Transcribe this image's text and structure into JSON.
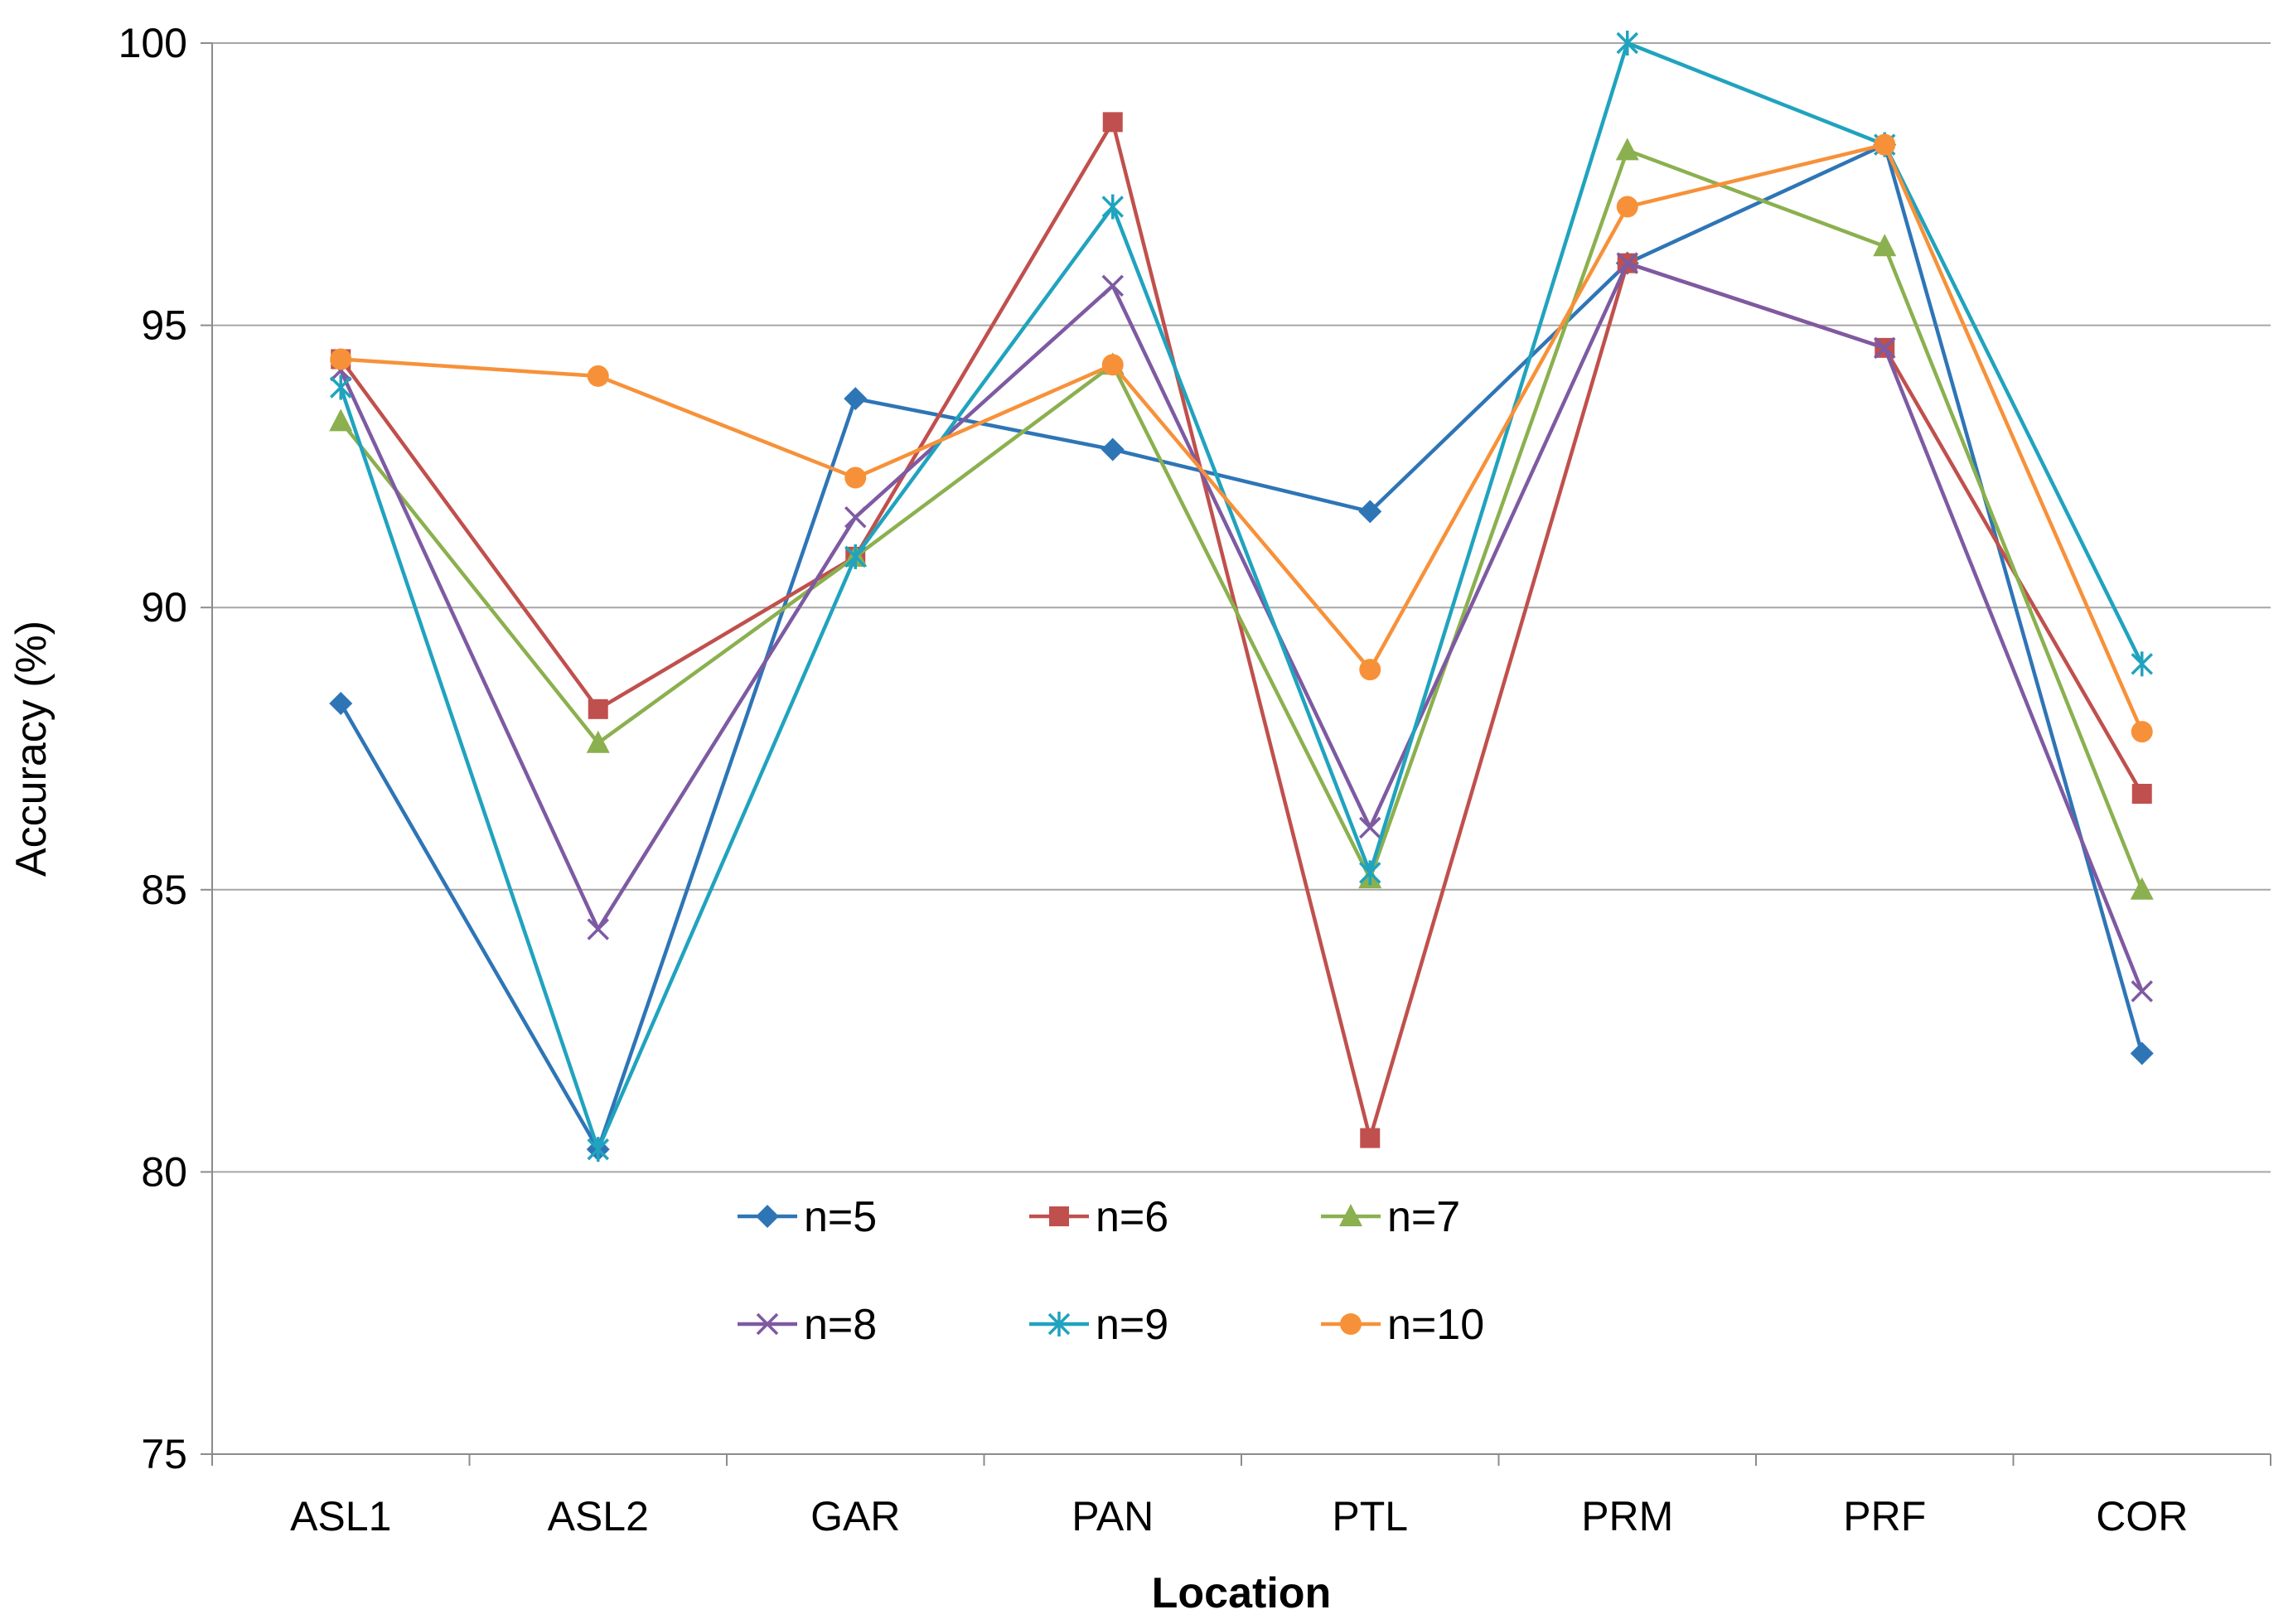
{
  "chart_data": {
    "type": "line",
    "title": "",
    "xlabel": "Location",
    "ylabel": "Accuracy (%)",
    "ylim": [
      75,
      100
    ],
    "yticks": [
      75,
      80,
      85,
      90,
      95,
      100
    ],
    "grid": true,
    "legend_position": "center-bottom",
    "categories": [
      "ASL1",
      "ASL2",
      "GAR",
      "PAN",
      "PTL",
      "PRM",
      "PRF",
      "COR"
    ],
    "series": [
      {
        "name": "n=5",
        "color": "#2E75B6",
        "marker": "diamond",
        "values": [
          88.3,
          80.4,
          93.7,
          92.8,
          91.7,
          96.1,
          98.2,
          82.1
        ]
      },
      {
        "name": "n=6",
        "color": "#C0504D",
        "marker": "square",
        "values": [
          94.4,
          88.2,
          90.9,
          98.6,
          80.6,
          96.1,
          94.6,
          86.7
        ]
      },
      {
        "name": "n=7",
        "color": "#8BB04F",
        "marker": "triangle",
        "values": [
          93.3,
          87.6,
          90.9,
          94.3,
          85.2,
          98.1,
          96.4,
          85.0
        ]
      },
      {
        "name": "n=8",
        "color": "#7E5AA2",
        "marker": "x",
        "values": [
          94.2,
          84.3,
          91.6,
          95.7,
          86.1,
          96.1,
          94.6,
          83.2
        ]
      },
      {
        "name": "n=9",
        "color": "#20A3BE",
        "marker": "star",
        "values": [
          93.9,
          80.4,
          90.9,
          97.1,
          85.3,
          100.0,
          98.2,
          89.0
        ]
      },
      {
        "name": "n=10",
        "color": "#F79139",
        "marker": "circle",
        "values": [
          94.4,
          94.1,
          92.3,
          94.3,
          88.9,
          97.1,
          98.2,
          87.8
        ]
      }
    ]
  }
}
